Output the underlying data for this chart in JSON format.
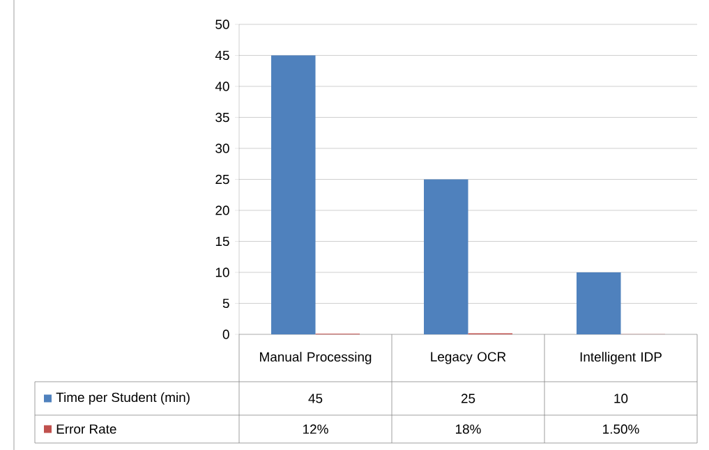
{
  "chart_data": {
    "type": "bar",
    "categories": [
      "Manual Processing",
      "Legacy OCR",
      "Intelligent IDP"
    ],
    "series": [
      {
        "name": "Time per Student (min)",
        "color": "#4f81bd",
        "values": [
          45,
          25,
          10
        ],
        "value_labels": [
          "45",
          "25",
          "10"
        ]
      },
      {
        "name": "Error Rate",
        "color": "#c0504d",
        "values": [
          0.12,
          0.18,
          0.015
        ],
        "value_labels": [
          "12%",
          "18%",
          "1.50%"
        ]
      }
    ],
    "ylim": [
      0,
      50
    ],
    "yticks": [
      0,
      5,
      10,
      15,
      20,
      25,
      30,
      35,
      40,
      45,
      50
    ],
    "grid": "y",
    "legend": "bottom"
  }
}
